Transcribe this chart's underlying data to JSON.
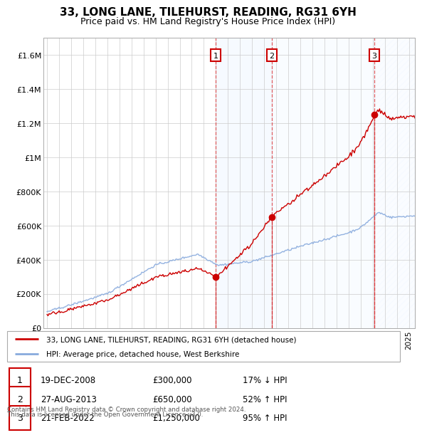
{
  "title": "33, LONG LANE, TILEHURST, READING, RG31 6YH",
  "subtitle": "Price paid vs. HM Land Registry's House Price Index (HPI)",
  "legend_line1": "33, LONG LANE, TILEHURST, READING, RG31 6YH (detached house)",
  "legend_line2": "HPI: Average price, detached house, West Berkshire",
  "footer1": "Contains HM Land Registry data © Crown copyright and database right 2024.",
  "footer2": "This data is licensed under the Open Government Licence v3.0.",
  "transactions": [
    {
      "num": "1",
      "date": "19-DEC-2008",
      "price": "£300,000",
      "pct": "17% ↓ HPI"
    },
    {
      "num": "2",
      "date": "27-AUG-2013",
      "price": "£650,000",
      "pct": "52% ↑ HPI"
    },
    {
      "num": "3",
      "date": "21-FEB-2022",
      "price": "£1,250,000",
      "pct": "95% ↑ HPI"
    }
  ],
  "t_years": [
    2008.97,
    2013.65,
    2022.13
  ],
  "t_values": [
    300000,
    650000,
    1250000
  ],
  "ylim": [
    0,
    1700000
  ],
  "xlim": [
    1994.7,
    2025.5
  ],
  "line_color_red": "#cc0000",
  "line_color_blue": "#88aadd",
  "shade_color": "#ddeeff",
  "marker_box_color": "#cc0000",
  "bg_color": "#ffffff",
  "grid_color": "#cccccc"
}
